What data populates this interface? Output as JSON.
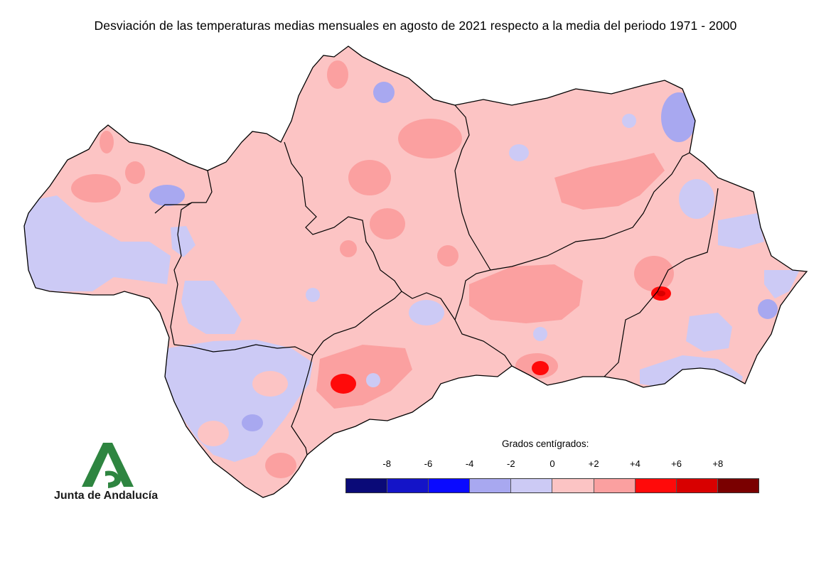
{
  "title": "Desviación de las temperaturas medias mensuales en agosto de 2021 respecto a la media del periodo 1971 - 2000",
  "legend": {
    "caption": "Grados centígrados:",
    "ticks": [
      "-8",
      "-6",
      "-4",
      "-2",
      "0",
      "+2",
      "+4",
      "+6",
      "+8"
    ],
    "colors": [
      "#0a0a78",
      "#1414c8",
      "#0a0aff",
      "#a8a8f0",
      "#cccaf5",
      "#fcc4c4",
      "#fba0a0",
      "#ff0a0a",
      "#d80000",
      "#7a0000"
    ]
  },
  "logo": {
    "text": "Junta de Andalucía",
    "color": "#2e8540"
  },
  "map": {
    "region": "Andalucía",
    "border_color": "#000000"
  }
}
